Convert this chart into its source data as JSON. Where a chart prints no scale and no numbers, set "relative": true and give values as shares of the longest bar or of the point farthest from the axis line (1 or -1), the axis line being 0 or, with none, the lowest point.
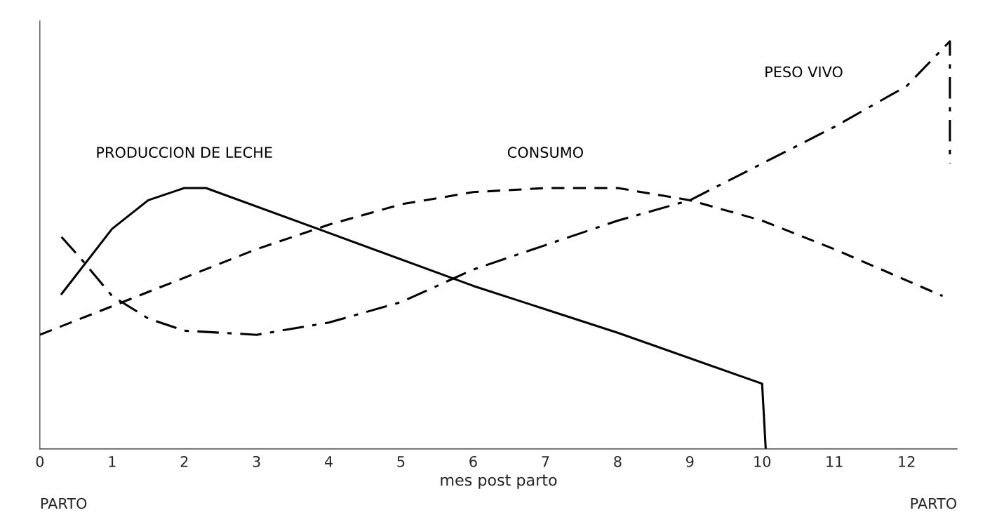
{
  "chart_data": {
    "type": "line",
    "relative": true,
    "xlabel": "mes post parto",
    "xlim": [
      0,
      12.7
    ],
    "xticks": [
      0,
      1,
      2,
      3,
      4,
      5,
      6,
      7,
      8,
      9,
      10,
      11,
      12
    ],
    "series": [
      {
        "name": "PRODUCCION DE LECHE",
        "color": "#000000",
        "line_style": "solid",
        "x": [
          0.3,
          1,
          1.5,
          2,
          2.3,
          4,
          6,
          8,
          10,
          10.05
        ],
        "values": [
          0.38,
          0.54,
          0.61,
          0.64,
          0.64,
          0.53,
          0.4,
          0.285,
          0.16,
          0
        ]
      },
      {
        "name": "CONSUMO",
        "color": "#000000",
        "line_style": "dashed",
        "x": [
          0,
          1,
          2,
          3,
          4,
          5,
          6,
          7,
          8,
          9,
          10,
          11,
          12.5
        ],
        "values": [
          0.28,
          0.35,
          0.42,
          0.49,
          0.55,
          0.6,
          0.63,
          0.64,
          0.64,
          0.61,
          0.56,
          0.49,
          0.375
        ]
      },
      {
        "name": "PESO VIVO",
        "color": "#000000",
        "line_style": "dashdot",
        "x": [
          0.3,
          0.6,
          1,
          1.5,
          2,
          3,
          4,
          5,
          6,
          7,
          8,
          9,
          10,
          11,
          12,
          12.6,
          12.6
        ],
        "values": [
          0.52,
          0.46,
          0.375,
          0.32,
          0.29,
          0.28,
          0.31,
          0.36,
          0.44,
          0.5,
          0.56,
          0.61,
          0.7,
          0.79,
          0.89,
          1.0,
          0.7
        ]
      }
    ],
    "annotations": [
      "PARTO",
      "PARTO"
    ],
    "grid": false,
    "legend": false,
    "marker": "none"
  }
}
